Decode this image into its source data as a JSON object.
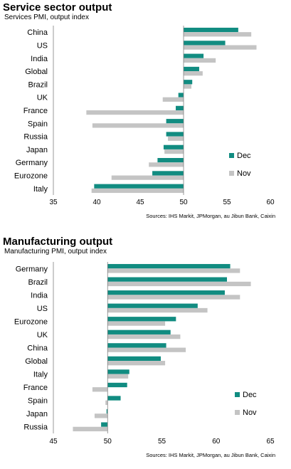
{
  "colors": {
    "dec": "#118c81",
    "nov": "#c4c4c4",
    "axis": "#7f7f7f"
  },
  "chart_data": [
    {
      "type": "bar",
      "orientation": "horizontal",
      "title": "Service sector output",
      "subtitle": "Services PMI, output index",
      "source": "Sources: IHS Markit, JPMorgan, au Jibun Bank, Caixin",
      "categories": [
        "China",
        "US",
        "India",
        "Global",
        "Brazil",
        "UK",
        "France",
        "Spain",
        "Russia",
        "Japan",
        "Germany",
        "Eurozone",
        "Italy"
      ],
      "series": [
        {
          "name": "Dec",
          "values": [
            56.3,
            54.8,
            52.3,
            51.8,
            51.0,
            49.4,
            49.1,
            48.0,
            48.0,
            47.7,
            47.0,
            46.4,
            39.7
          ]
        },
        {
          "name": "Nov",
          "values": [
            57.8,
            58.4,
            53.7,
            52.2,
            50.9,
            47.6,
            38.8,
            39.5,
            48.2,
            47.8,
            46.0,
            41.7,
            39.4
          ]
        }
      ],
      "xlim": [
        35,
        60
      ],
      "xticks": [
        35,
        40,
        45,
        50,
        55,
        60
      ],
      "baseline": 50,
      "legend": "right"
    },
    {
      "type": "bar",
      "orientation": "horizontal",
      "title": "Manufacturing output",
      "subtitle": "Manufacturing  PMI, output index",
      "source": "Sources: IHS Markit, JPMorgan, au Jibun Bank, Caixin",
      "categories": [
        "Germany",
        "Brazil",
        "India",
        "US",
        "Eurozone",
        "UK",
        "China",
        "Global",
        "Italy",
        "France",
        "Spain",
        "Japan",
        "Russia"
      ],
      "series": [
        {
          "name": "Dec",
          "values": [
            61.3,
            61.0,
            60.8,
            58.3,
            56.3,
            55.8,
            55.4,
            54.9,
            52.0,
            51.8,
            51.2,
            49.9,
            49.4
          ]
        },
        {
          "name": "Nov",
          "values": [
            62.2,
            63.2,
            62.2,
            59.2,
            55.3,
            56.7,
            57.2,
            55.3,
            51.9,
            48.6,
            49.8,
            48.8,
            46.8
          ]
        }
      ],
      "xlim": [
        45,
        65
      ],
      "xticks": [
        45,
        50,
        55,
        60,
        65
      ],
      "baseline": 50,
      "legend": "right"
    }
  ]
}
